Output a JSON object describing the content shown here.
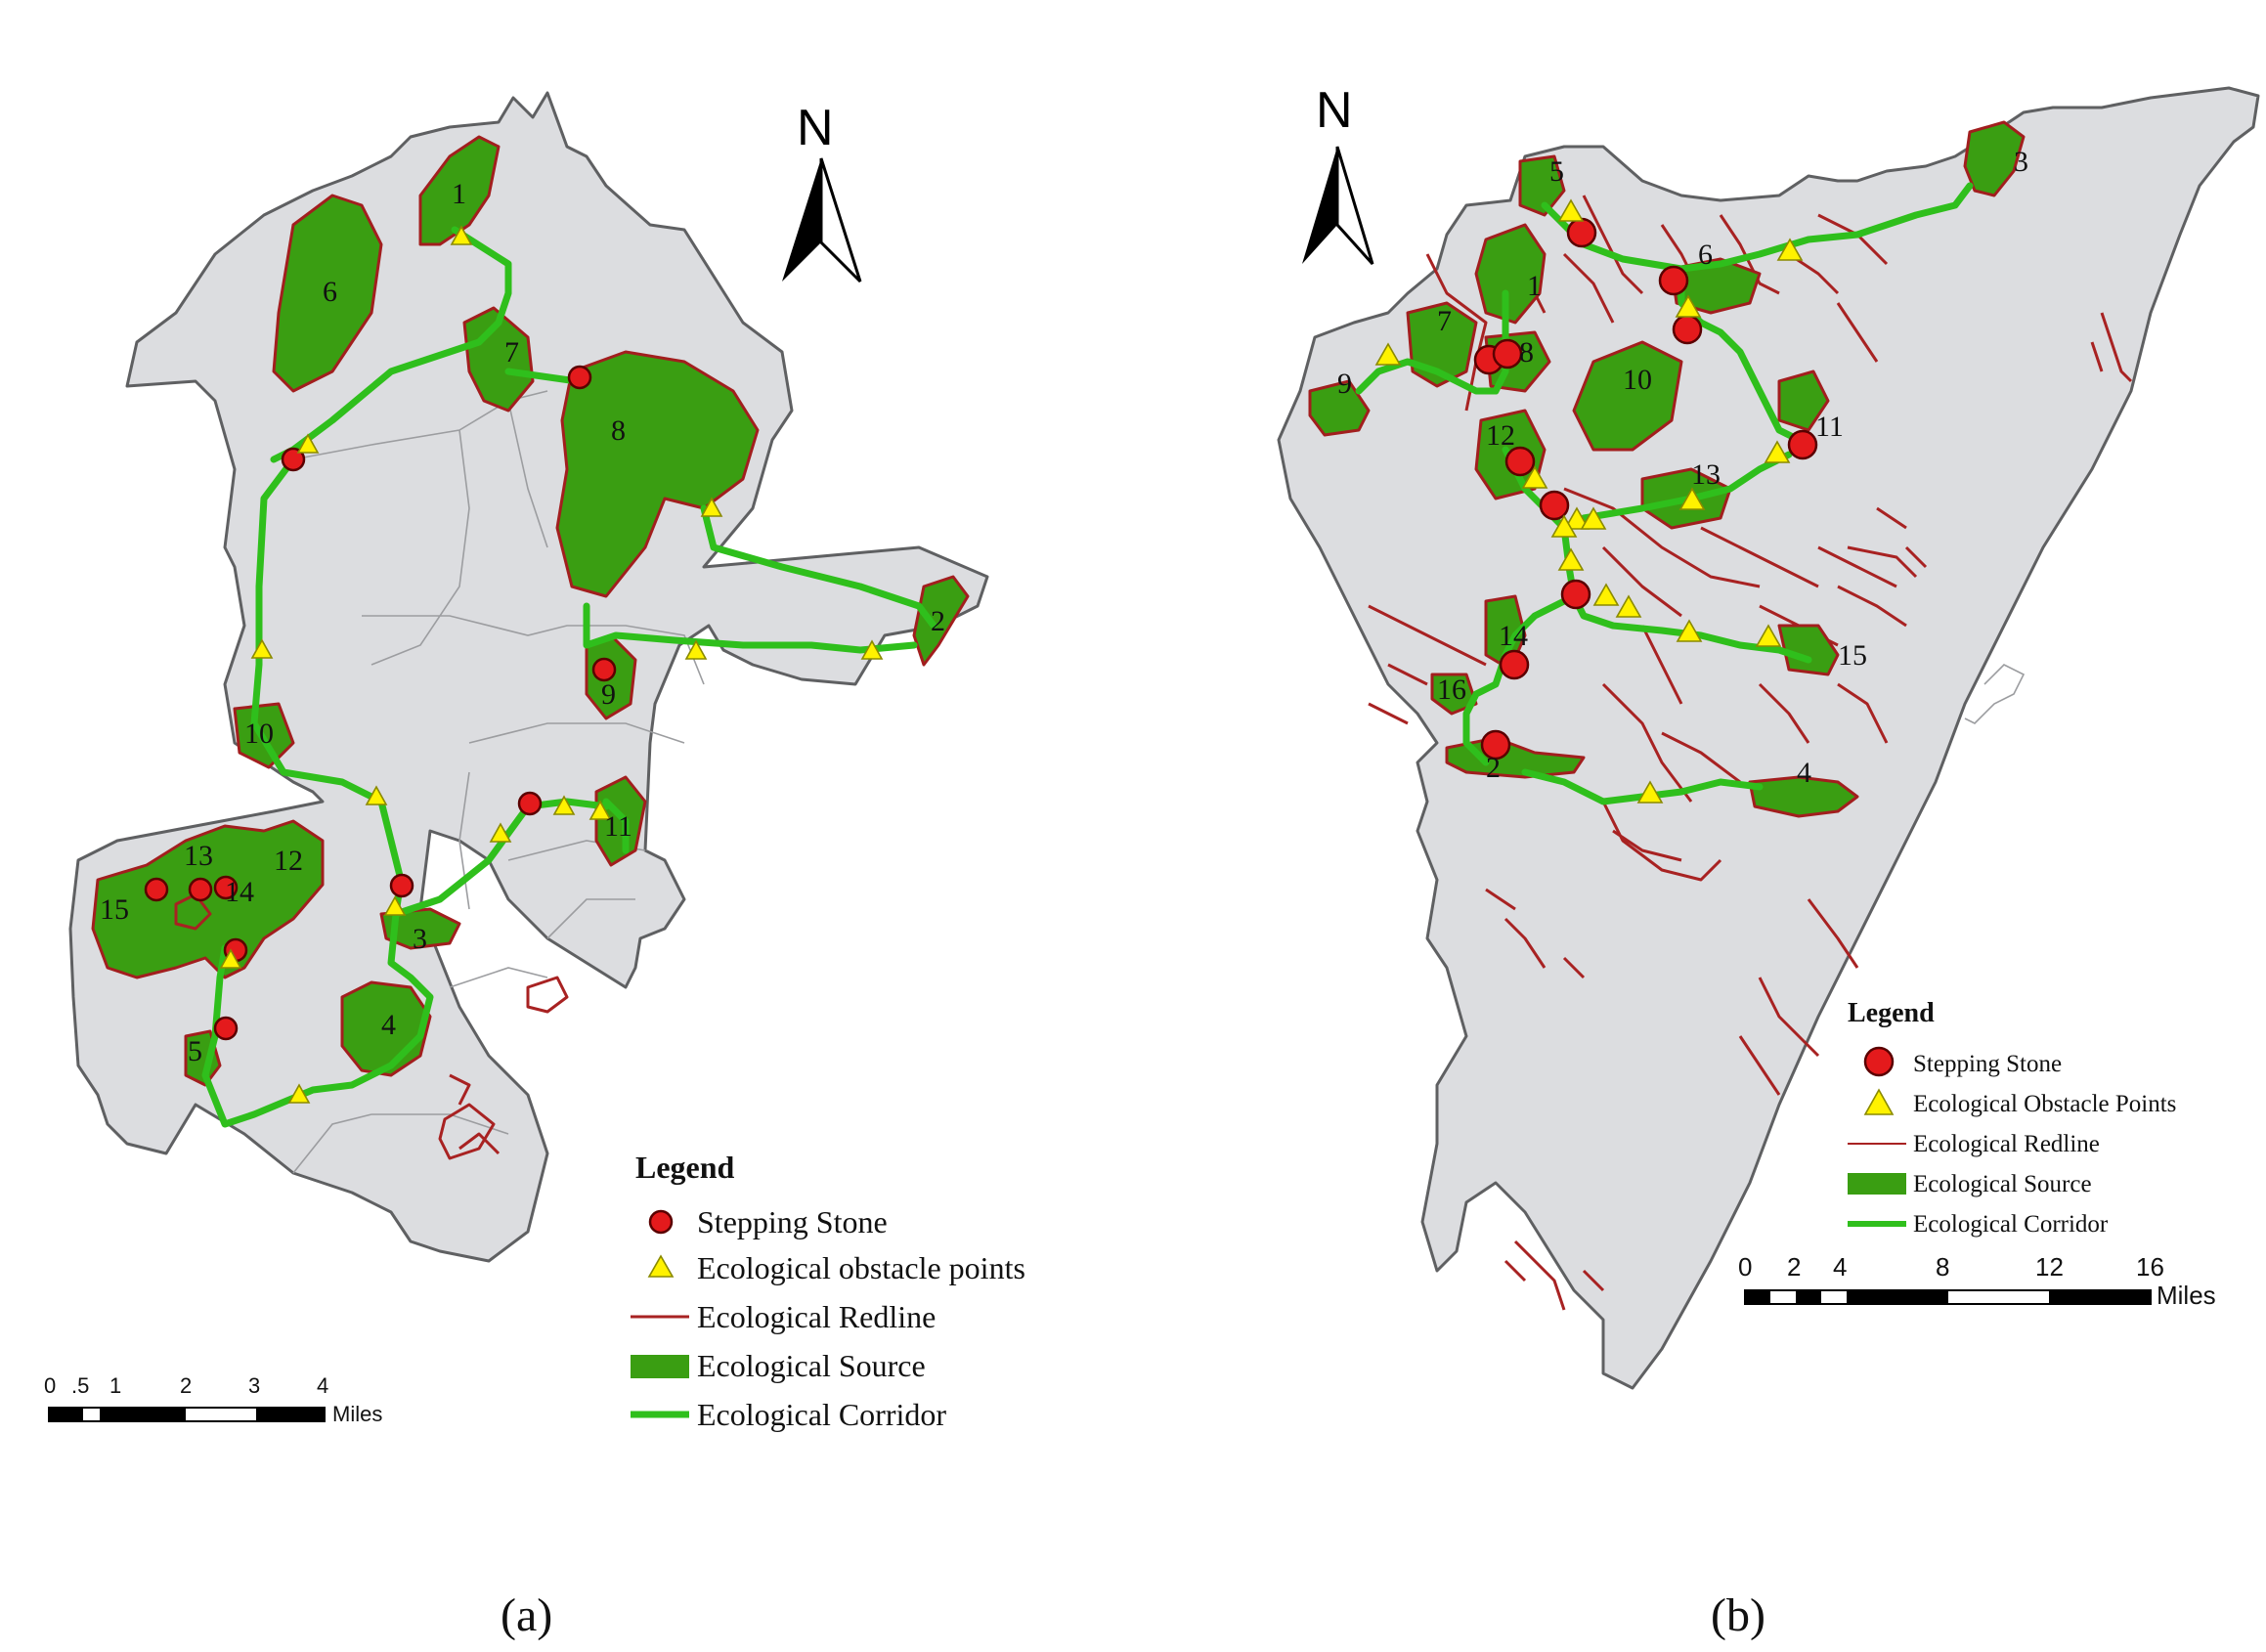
{
  "panels": [
    {
      "id": "a",
      "caption": "(a)",
      "north": "N",
      "legend": {
        "title": "Legend",
        "items": [
          {
            "symbol": "stepping-stone",
            "label": "Stepping Stone"
          },
          {
            "symbol": "obstacle",
            "label": "Ecological obstacle points"
          },
          {
            "symbol": "redline",
            "label": "Ecological Redline"
          },
          {
            "symbol": "source",
            "label": "Ecological Source"
          },
          {
            "symbol": "corridor",
            "label": "Ecological Corridor"
          }
        ]
      },
      "scale_bar": {
        "ticks": [
          "0",
          ".5",
          "1",
          "2",
          "3",
          "4"
        ],
        "unit": "Miles"
      },
      "source_labels": [
        "1",
        "2",
        "3",
        "4",
        "5",
        "6",
        "7",
        "8",
        "9",
        "10",
        "11",
        "12",
        "13",
        "14",
        "15"
      ]
    },
    {
      "id": "b",
      "caption": "(b)",
      "north": "N",
      "legend": {
        "title": "Legend",
        "items": [
          {
            "symbol": "stepping-stone",
            "label": "Stepping Stone"
          },
          {
            "symbol": "obstacle",
            "label": "Ecological Obstacle Points"
          },
          {
            "symbol": "redline",
            "label": "Ecological Redline"
          },
          {
            "symbol": "source",
            "label": "Ecological Source"
          },
          {
            "symbol": "corridor",
            "label": "Ecological Corridor"
          }
        ]
      },
      "scale_bar": {
        "ticks": [
          "0",
          "2",
          "4",
          "8",
          "12",
          "16"
        ],
        "unit": "Miles"
      },
      "source_labels": [
        "1",
        "2",
        "3",
        "4",
        "5",
        "6",
        "7",
        "8",
        "9",
        "10",
        "11",
        "12",
        "13",
        "14",
        "15",
        "16"
      ]
    }
  ],
  "colors": {
    "region": "#dcdde0",
    "source": "#3a9e12",
    "redline": "#a82222",
    "corridor": "#2fbf1c",
    "stepping_stone": "#e41a1c",
    "obstacle": "#fff200"
  }
}
